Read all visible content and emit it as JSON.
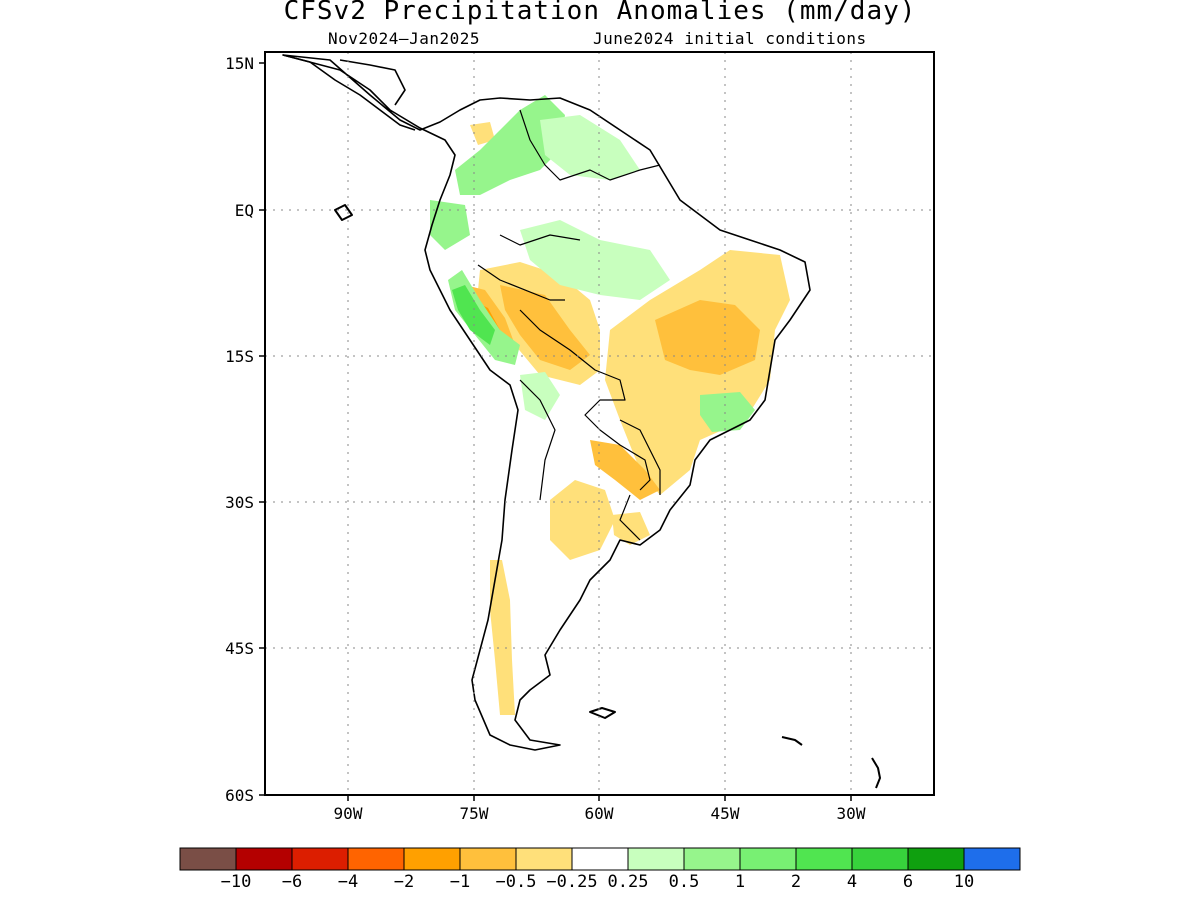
{
  "title": "CFSv2 Precipitation Anomalies (mm/day)",
  "subtitle_left": "Nov2024–Jan2025",
  "subtitle_right": "June2024 initial conditions",
  "map": {
    "lat_labels": [
      "15N",
      "EQ",
      "15S",
      "30S",
      "45S",
      "60S"
    ],
    "lon_labels": [
      "90W",
      "75W",
      "60W",
      "45W",
      "30W"
    ],
    "grid": "dotted"
  },
  "colorbar": {
    "colors": [
      "#7a4e46",
      "#b40000",
      "#dc1e00",
      "#ff6400",
      "#ffa000",
      "#ffc03c",
      "#ffe07a",
      "#ffffff",
      "#c8ffbe",
      "#96f58c",
      "#78f073",
      "#50e550",
      "#37d23c",
      "#0fa00f",
      "#1e6eeb"
    ],
    "labels": [
      "−10",
      "−6",
      "−4",
      "−2",
      "−1",
      "−0.5",
      "−0.25",
      "0.25",
      "0.5",
      "1",
      "2",
      "4",
      "6",
      "10"
    ]
  }
}
